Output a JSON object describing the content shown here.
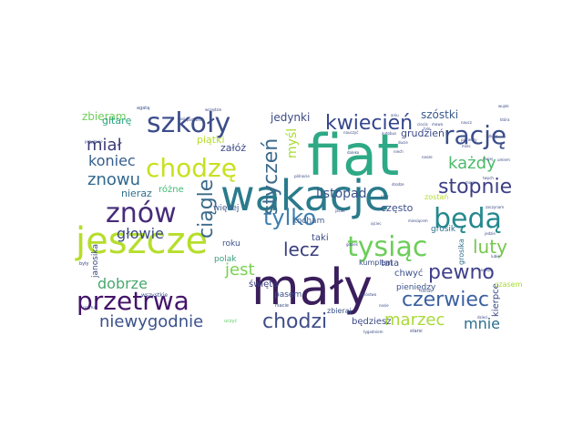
{
  "words": [
    {
      "text": "fiat",
      "color": "#2ea986"
    },
    {
      "text": "mały",
      "color": "#3b1f5c"
    },
    {
      "text": "wakacje",
      "color": "#2a7b8c"
    },
    {
      "text": "jeszcze",
      "color": "#b5de2b"
    },
    {
      "text": "znów",
      "color": "#472c7a"
    },
    {
      "text": "szkoły",
      "color": "#3b4d8a"
    },
    {
      "text": "chodzę",
      "color": "#c9e020"
    },
    {
      "text": "będą",
      "color": "#23888e"
    },
    {
      "text": "tysiąc",
      "color": "#6cce59"
    },
    {
      "text": "przetrwa",
      "color": "#44146a"
    },
    {
      "text": "rację",
      "color": "#3b4f8a"
    },
    {
      "text": "tylko",
      "color": "#3e7fb0"
    },
    {
      "text": "pewno",
      "color": "#3f3f8a"
    },
    {
      "text": "czerwiec",
      "color": "#3b60a0"
    },
    {
      "text": "kwiecień",
      "color": "#35468d"
    },
    {
      "text": "chodzi",
      "color": "#3f4d89"
    },
    {
      "text": "stopnie",
      "color": "#3c3e86"
    },
    {
      "text": "styczeń",
      "color": "#3b6a8c"
    },
    {
      "text": "każdy",
      "color": "#4cba6a"
    },
    {
      "text": "luty",
      "color": "#76c74e"
    },
    {
      "text": "ciągle",
      "color": "#3b6b8a"
    },
    {
      "text": "lecz",
      "color": "#3a3f7c"
    },
    {
      "text": "marzec",
      "color": "#a9d93a"
    },
    {
      "text": "niewygodnie",
      "color": "#3b528b"
    },
    {
      "text": "dobrze",
      "color": "#4aa86e"
    },
    {
      "text": "jest",
      "color": "#7ad151"
    },
    {
      "text": "miał",
      "color": "#3d3a78"
    },
    {
      "text": "znowu",
      "color": "#31688e"
    },
    {
      "text": "koniec",
      "color": "#355f8d"
    },
    {
      "text": "głowie",
      "color": "#3b4a85"
    },
    {
      "text": "mnie",
      "color": "#2c6e8e"
    },
    {
      "text": "listopad",
      "color": "#3b548c"
    },
    {
      "text": "myśl",
      "color": "#a8db34"
    },
    {
      "text": "zbieram",
      "color": "#6ece58"
    },
    {
      "text": "szóstki",
      "color": "#3a5a8c"
    },
    {
      "text": "jedynki",
      "color": "#3b4a85"
    },
    {
      "text": "piątki",
      "color": "#b5de2b"
    },
    {
      "text": "gitarę",
      "color": "#2aa483"
    },
    {
      "text": "grudzień",
      "color": "#3a4a86"
    },
    {
      "text": "często",
      "color": "#3b4e88"
    },
    {
      "text": "nieraz",
      "color": "#2e6f8e"
    },
    {
      "text": "różne",
      "color": "#3fbc73"
    },
    {
      "text": "więcej",
      "color": "#3b5b8c"
    },
    {
      "text": "zostań",
      "color": "#b5de2b"
    },
    {
      "text": "grosik",
      "color": "#2e6f8e"
    },
    {
      "text": "roku",
      "color": "#3b528b"
    },
    {
      "text": "polak",
      "color": "#37a07a"
    },
    {
      "text": "kocham",
      "color": "#3b5b8c"
    },
    {
      "text": "taki",
      "color": "#3b4a85"
    },
    {
      "text": "tata",
      "color": "#3b4a85"
    },
    {
      "text": "święta",
      "color": "#3b3f80"
    },
    {
      "text": "chwyć",
      "color": "#3b528b"
    },
    {
      "text": "pieniędzy",
      "color": "#3b528b"
    },
    {
      "text": "pasem",
      "color": "#3b4f88"
    },
    {
      "text": "będziesz",
      "color": "#3b4a85"
    },
    {
      "text": "kierpce",
      "color": "#3b4a85"
    },
    {
      "text": "zbieraj",
      "color": "#3b528b"
    },
    {
      "text": "kumplem",
      "color": "#3b4f88"
    },
    {
      "text": "czasem",
      "color": "#a8db34"
    },
    {
      "text": "janosika",
      "color": "#3b4a85"
    },
    {
      "text": "wszystkie",
      "color": "#3b4f88"
    },
    {
      "text": "załóż",
      "color": "#3b4a85"
    },
    {
      "text": "grosika",
      "color": "#2e6f8e"
    },
    {
      "text": "agatą",
      "color": "#3b528b"
    },
    {
      "text": "starsi",
      "color": "#3b4a85"
    },
    {
      "text": "rsacie",
      "color": "#3b4a85"
    },
    {
      "text": "uczyć",
      "color": "#5ec962"
    },
    {
      "text": "gdzieś",
      "color": "#3b4a85"
    },
    {
      "text": "miesiącem",
      "color": "#3b4a85"
    },
    {
      "text": "pólnocie",
      "color": "#3b4a85"
    },
    {
      "text": "nauczyć",
      "color": "#3b4a85"
    },
    {
      "text": "jacak",
      "color": "#3b4a85"
    },
    {
      "text": "przytul",
      "color": "#3b4a85"
    },
    {
      "text": "były",
      "color": "#3b4a85"
    },
    {
      "text": "mojej",
      "color": "#3b4a85"
    },
    {
      "text": "przyjmuje",
      "color": "#3b4a85"
    },
    {
      "text": "tygodniem",
      "color": "#3b4a85"
    },
    {
      "text": "mnóstwo",
      "color": "#3b4a85"
    },
    {
      "text": "temat",
      "color": "#3b4a85"
    },
    {
      "text": "autobus",
      "color": "#3b4a85"
    },
    {
      "text": "aniu",
      "color": "#3b4a85"
    },
    {
      "text": "ciocia",
      "color": "#3b4a85"
    },
    {
      "text": "która",
      "color": "#3b4a85"
    },
    {
      "text": "miec",
      "color": "#3b4a85"
    },
    {
      "text": "ducie",
      "color": "#3b4a85"
    },
    {
      "text": "mowa",
      "color": "#3b4a85"
    },
    {
      "text": "nosi",
      "color": "#3b4a85"
    },
    {
      "text": "twych",
      "color": "#3b4a85"
    },
    {
      "text": "jedzie",
      "color": "#3b4a85"
    },
    {
      "text": "lubię",
      "color": "#3b4a85"
    },
    {
      "text": "zaczynam",
      "color": "#3b4a85"
    },
    {
      "text": "daleko",
      "color": "#3b4a85"
    },
    {
      "text": "moim",
      "color": "#3b4a85"
    },
    {
      "text": "drodze",
      "color": "#3b4a85"
    },
    {
      "text": "przy",
      "color": "#3b4a85"
    },
    {
      "text": "dzieci",
      "color": "#3b4a85"
    },
    {
      "text": "nosie",
      "color": "#3b4a85"
    },
    {
      "text": "hawaje",
      "color": "#3b4a85"
    },
    {
      "text": "nasze",
      "color": "#3b4a85"
    },
    {
      "text": "niech",
      "color": "#3b4a85"
    },
    {
      "text": "szkole",
      "color": "#3b4a85"
    },
    {
      "text": "umiem",
      "color": "#3b4a85"
    },
    {
      "text": "podobno",
      "color": "#3b4a85"
    },
    {
      "text": "wszędzie",
      "color": "#3b4a85"
    },
    {
      "text": "wujek",
      "color": "#3b4a85"
    },
    {
      "text": "naucz",
      "color": "#3b4a85"
    },
    {
      "text": "ojciec",
      "color": "#3b4a85"
    },
    {
      "text": "pierwszy",
      "color": "#3b4a85"
    },
    {
      "text": "tyle",
      "color": "#3b4a85"
    }
  ]
}
